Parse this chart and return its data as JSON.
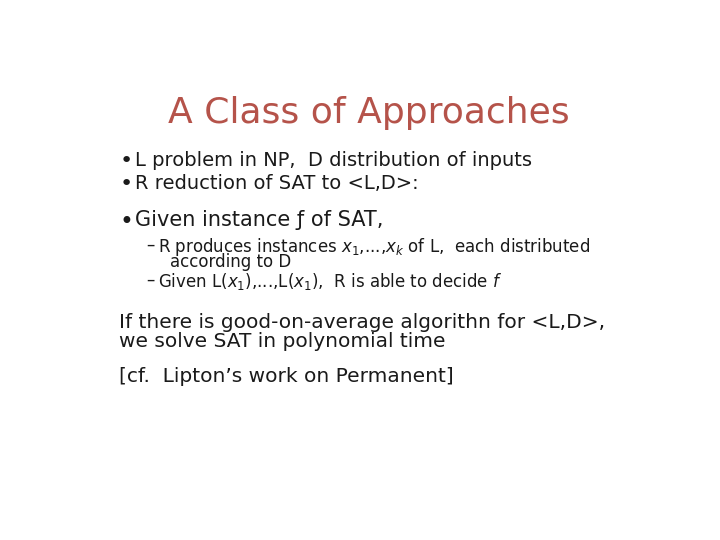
{
  "title": "A Class of Approaches",
  "title_color": "#b5534a",
  "title_fontsize": 26,
  "bg_color": "#ffffff",
  "body_color": "#1a1a1a",
  "bullet1": "L problem in NP,  D distribution of inputs",
  "bullet2": "R reduction of SAT to <L,D>:",
  "bullet3_header": "Given instance ƒ of SAT,",
  "sub1_text": "R produces instances $x_1$,...,$x_k$ of L,  each distributed",
  "sub1_cont": "according to D",
  "sub2_text": "Given L($x_1$),...,L($x_1$),  R is able to decide $f$",
  "para1_line1": "If there is good-on-average algorithn for <L,D>,",
  "para1_line2": "we solve SAT in polynomial time",
  "para2": "[cf.  Lipton’s work on Permanent]",
  "body_fontsize": 14,
  "sub_fontsize": 12,
  "para_fontsize": 14.5,
  "bullet3_fontsize": 15
}
